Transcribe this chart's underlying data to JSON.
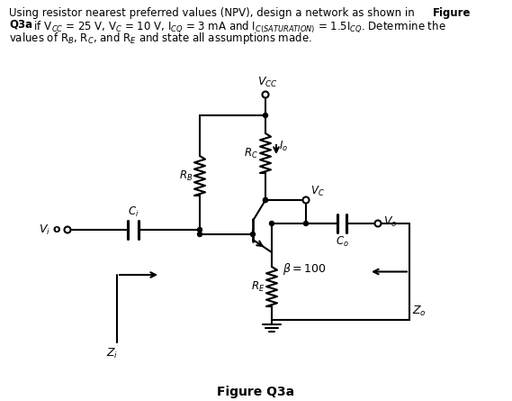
{
  "bg_color": "#ffffff",
  "line_color": "#000000",
  "figsize": [
    5.69,
    4.45
  ],
  "dpi": 100,
  "header_line1": "Using resistor nearest preferred values (NPV), design a network as shown in ",
  "header_bold1": "Figure",
  "header_line2_bold": "Q3a",
  "header_line2_rest": " if V",
  "caption": "Figure Q3a",
  "vcc_label": "$V_{CC}$",
  "rc_label": "$R_C$",
  "rb_label": "$R_B$",
  "re_label": "$R_E$",
  "vc_label": "$V_C$",
  "vo_label": "$V_o$",
  "vi_label": "$V_i$",
  "ci_label": "$C_i$",
  "co_label": "$C_o$",
  "io_label": "$I_o$",
  "beta_label": "$\\beta = 100$",
  "zi_label": "$Z_i$",
  "zo_label": "$Z_o$"
}
